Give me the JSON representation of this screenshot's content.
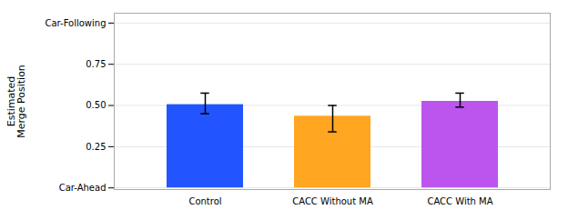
{
  "chart_data": {
    "type": "bar",
    "categories": [
      "Control",
      "CACC Without MA",
      "CACC With MA"
    ],
    "values": [
      0.505,
      0.435,
      0.525
    ],
    "errors_upper": [
      0.07,
      0.065,
      0.05
    ],
    "errors_lower": [
      0.055,
      0.095,
      0.035
    ],
    "colors": [
      "#2255FF",
      "#FFA520",
      "#BB55EE"
    ],
    "ylabel": "Estimated\nMerge Position",
    "ylim": [
      -0.01,
      1.06
    ],
    "yticks": [
      {
        "value": 0.0,
        "label": "Car-Ahead"
      },
      0.25,
      {
        "value": 0.5,
        "label": "0.50"
      },
      0.75,
      {
        "value": 1.0,
        "label": "Car-Following"
      }
    ],
    "grid": true
  }
}
